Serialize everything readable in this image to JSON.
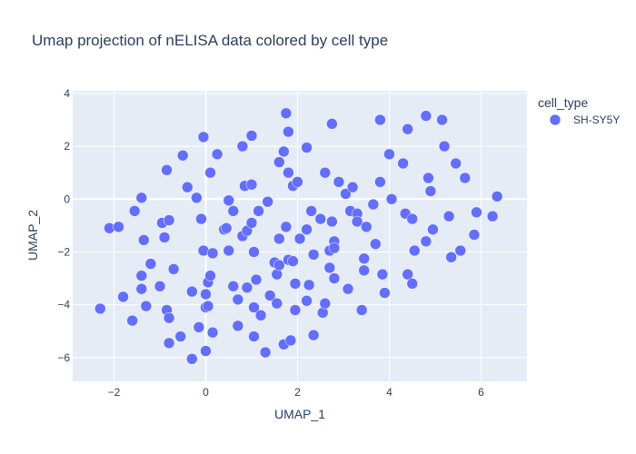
{
  "chart_data": {
    "type": "scatter",
    "title": "Umap projection of nELISA data colored by cell type",
    "xlabel": "UMAP_1",
    "ylabel": "UMAP_2",
    "xlim": [
      -2.9,
      7.0
    ],
    "ylim": [
      -6.9,
      4.1
    ],
    "x_ticks": [
      -2,
      0,
      2,
      4,
      6
    ],
    "x_tick_labels": [
      "−2",
      "0",
      "2",
      "4",
      "6"
    ],
    "y_ticks": [
      -6,
      -4,
      -2,
      0,
      2,
      4
    ],
    "y_tick_labels": [
      "−6",
      "−4",
      "−2",
      "0",
      "2",
      "4"
    ],
    "grid": true,
    "legend": {
      "title": "cell_type",
      "placement": "top-right"
    },
    "series": [
      {
        "name": "SH-SY5Y",
        "color": "#636efa",
        "points": [
          [
            -2.3,
            -4.15
          ],
          [
            -2.1,
            -1.1
          ],
          [
            -1.9,
            -1.05
          ],
          [
            -1.8,
            -3.7
          ],
          [
            -1.6,
            -4.6
          ],
          [
            -1.55,
            -0.45
          ],
          [
            -1.4,
            0.05
          ],
          [
            -1.4,
            -2.9
          ],
          [
            -1.4,
            -3.4
          ],
          [
            -1.35,
            -1.55
          ],
          [
            -1.3,
            -4.05
          ],
          [
            -1.2,
            -2.45
          ],
          [
            -1.0,
            -3.3
          ],
          [
            -0.95,
            -0.9
          ],
          [
            -0.9,
            -1.45
          ],
          [
            -0.85,
            -4.2
          ],
          [
            -0.85,
            1.1
          ],
          [
            -0.8,
            -0.8
          ],
          [
            -0.8,
            -4.5
          ],
          [
            -0.8,
            -5.45
          ],
          [
            -0.7,
            -2.65
          ],
          [
            -0.55,
            -5.2
          ],
          [
            -0.5,
            1.65
          ],
          [
            -0.4,
            0.45
          ],
          [
            -0.3,
            -3.5
          ],
          [
            -0.3,
            -6.05
          ],
          [
            -0.2,
            0.05
          ],
          [
            -0.15,
            -4.85
          ],
          [
            -0.1,
            -0.75
          ],
          [
            -0.05,
            2.35
          ],
          [
            -0.05,
            -1.95
          ],
          [
            0.0,
            -5.75
          ],
          [
            0.0,
            -3.6
          ],
          [
            0.0,
            -4.1
          ],
          [
            0.05,
            -3.15
          ],
          [
            0.05,
            -4.05
          ],
          [
            0.1,
            1.0
          ],
          [
            0.1,
            -2.9
          ],
          [
            0.15,
            -5.05
          ],
          [
            0.15,
            -2.05
          ],
          [
            0.25,
            1.7
          ],
          [
            0.4,
            -1.15
          ],
          [
            0.45,
            -1.1
          ],
          [
            0.5,
            -1.95
          ],
          [
            0.5,
            -0.05
          ],
          [
            0.6,
            -0.45
          ],
          [
            0.6,
            -3.3
          ],
          [
            0.7,
            -3.8
          ],
          [
            0.7,
            -4.8
          ],
          [
            0.8,
            2.0
          ],
          [
            0.8,
            -1.4
          ],
          [
            0.85,
            0.5
          ],
          [
            0.9,
            -1.2
          ],
          [
            0.9,
            -3.35
          ],
          [
            1.0,
            2.4
          ],
          [
            1.0,
            0.55
          ],
          [
            1.0,
            -0.9
          ],
          [
            1.05,
            -2.0
          ],
          [
            1.05,
            -4.1
          ],
          [
            1.05,
            -5.2
          ],
          [
            1.1,
            -3.05
          ],
          [
            1.15,
            -0.45
          ],
          [
            1.2,
            -4.4
          ],
          [
            1.3,
            -5.8
          ],
          [
            1.35,
            -0.1
          ],
          [
            1.4,
            -3.65
          ],
          [
            1.5,
            -2.4
          ],
          [
            1.55,
            -2.85
          ],
          [
            1.55,
            -3.95
          ],
          [
            1.6,
            1.4
          ],
          [
            1.6,
            -2.5
          ],
          [
            1.6,
            -1.5
          ],
          [
            1.7,
            1.8
          ],
          [
            1.7,
            -5.5
          ],
          [
            1.75,
            3.25
          ],
          [
            1.75,
            -1.05
          ],
          [
            1.8,
            2.55
          ],
          [
            1.8,
            1.0
          ],
          [
            1.8,
            -2.3
          ],
          [
            1.85,
            -5.35
          ],
          [
            1.9,
            0.5
          ],
          [
            1.9,
            -2.35
          ],
          [
            1.95,
            -3.2
          ],
          [
            1.95,
            -4.2
          ],
          [
            2.0,
            0.65
          ],
          [
            2.05,
            -1.5
          ],
          [
            2.2,
            1.95
          ],
          [
            2.2,
            -1.15
          ],
          [
            2.2,
            -3.85
          ],
          [
            2.25,
            -3.25
          ],
          [
            2.3,
            -0.45
          ],
          [
            2.35,
            -5.15
          ],
          [
            2.35,
            -2.1
          ],
          [
            2.5,
            -0.75
          ],
          [
            2.55,
            -4.3
          ],
          [
            2.6,
            1.0
          ],
          [
            2.6,
            -3.95
          ],
          [
            2.7,
            -1.95
          ],
          [
            2.7,
            -2.6
          ],
          [
            2.75,
            2.85
          ],
          [
            2.75,
            -0.85
          ],
          [
            2.8,
            -1.6
          ],
          [
            2.8,
            -1.85
          ],
          [
            2.8,
            -3.0
          ],
          [
            2.9,
            0.65
          ],
          [
            3.05,
            0.2
          ],
          [
            3.1,
            -3.4
          ],
          [
            3.15,
            -0.45
          ],
          [
            3.2,
            0.45
          ],
          [
            3.3,
            -0.55
          ],
          [
            3.3,
            -0.85
          ],
          [
            3.4,
            -4.2
          ],
          [
            3.45,
            -2.25
          ],
          [
            3.45,
            -2.7
          ],
          [
            3.5,
            -1.05
          ],
          [
            3.65,
            -0.2
          ],
          [
            3.7,
            -1.7
          ],
          [
            3.8,
            0.65
          ],
          [
            3.8,
            3.0
          ],
          [
            3.85,
            -2.85
          ],
          [
            3.9,
            -3.55
          ],
          [
            4.0,
            1.7
          ],
          [
            4.05,
            0.0
          ],
          [
            4.3,
            1.35
          ],
          [
            4.35,
            -0.55
          ],
          [
            4.4,
            2.65
          ],
          [
            4.4,
            -2.85
          ],
          [
            4.5,
            -3.2
          ],
          [
            4.5,
            -0.75
          ],
          [
            4.55,
            -1.95
          ],
          [
            4.8,
            3.15
          ],
          [
            4.8,
            -1.6
          ],
          [
            4.85,
            0.8
          ],
          [
            4.9,
            0.3
          ],
          [
            4.95,
            -1.15
          ],
          [
            5.15,
            3.0
          ],
          [
            5.2,
            2.0
          ],
          [
            5.3,
            -0.65
          ],
          [
            5.35,
            -2.2
          ],
          [
            5.45,
            1.35
          ],
          [
            5.55,
            -1.95
          ],
          [
            5.65,
            0.8
          ],
          [
            5.85,
            -1.35
          ],
          [
            5.9,
            -0.5
          ],
          [
            6.25,
            -0.65
          ],
          [
            6.35,
            0.1
          ]
        ]
      }
    ]
  }
}
